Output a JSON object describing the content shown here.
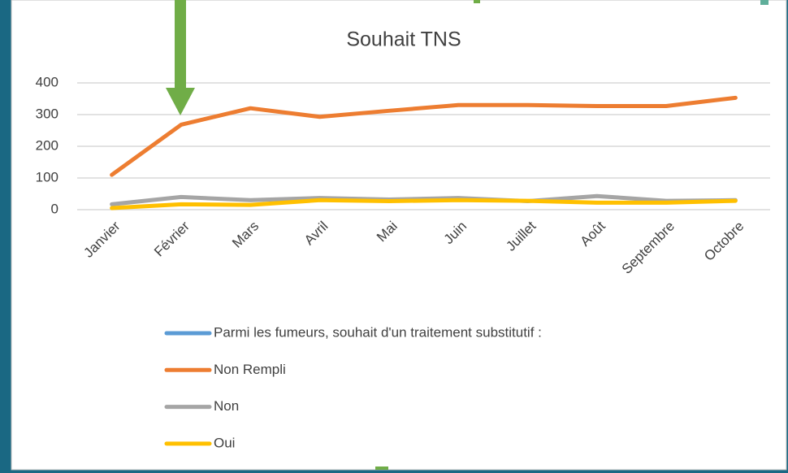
{
  "chart_data": {
    "type": "line",
    "title": "Souhait TNS",
    "categories": [
      "Janvier",
      "Février",
      "Mars",
      "Avril",
      "Mai",
      "Juin",
      "Juillet",
      "Août",
      "Septembre",
      "Octobre"
    ],
    "series": [
      {
        "name": "Parmi les fumeurs, souhait d'un traitement substitutif :",
        "color": "#5b9bd5",
        "values": [
          null,
          null,
          null,
          null,
          null,
          null,
          null,
          null,
          null,
          null
        ]
      },
      {
        "name": "Non Rempli",
        "color": "#ed7d31",
        "values": [
          110,
          268,
          320,
          293,
          312,
          330,
          330,
          327,
          327,
          353
        ]
      },
      {
        "name": "Non",
        "color": "#a5a5a5",
        "values": [
          17,
          40,
          30,
          37,
          32,
          37,
          27,
          43,
          28,
          30
        ]
      },
      {
        "name": "Oui",
        "color": "#ffc000",
        "values": [
          5,
          17,
          15,
          30,
          27,
          30,
          28,
          22,
          22,
          28
        ]
      }
    ],
    "ylim": [
      0,
      400
    ],
    "yticks": [
      0,
      100,
      200,
      300,
      400
    ],
    "grid": true,
    "legend": "bottom"
  }
}
